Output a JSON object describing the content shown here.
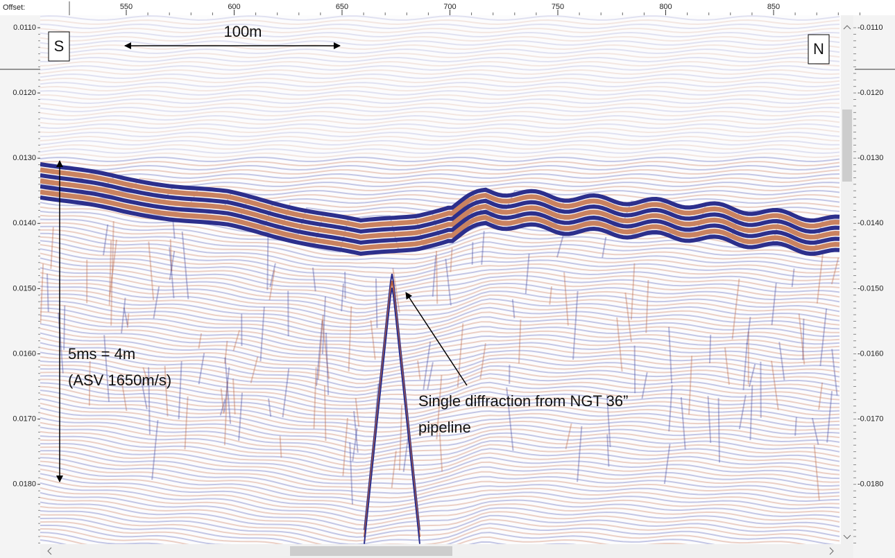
{
  "ruler": {
    "label": "Offset:",
    "ticks": [
      "550",
      "600",
      "650",
      "700",
      "750",
      "800",
      "850"
    ]
  },
  "left_axis": {
    "ticks": [
      "0.0110",
      "0.0120",
      "0.0130",
      "0.0140",
      "0.0150",
      "0.0160",
      "0.0170",
      "0.0180"
    ]
  },
  "right_axis": {
    "ticks": [
      "-0.0110",
      "-0.0120",
      "-0.0130",
      "-0.0140",
      "-0.0150",
      "-0.0160",
      "-0.0170",
      "-0.0180"
    ]
  },
  "annotations": {
    "south": "S",
    "north": "N",
    "scale": "100m",
    "time_scale": [
      "5ms = 4m",
      "(ASV 1650m/s)"
    ],
    "diffraction": [
      "Single diffraction from NGT 36”",
      "pipeline"
    ]
  }
}
